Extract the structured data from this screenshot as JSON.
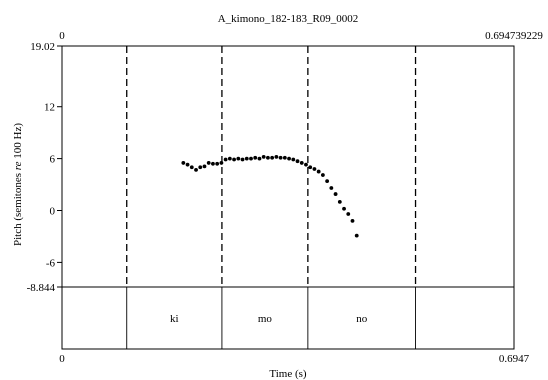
{
  "chart_data": {
    "type": "scatter",
    "title": "A_kimono_182-183_R09_0002",
    "xlabel": "Time (s)",
    "ylabel": "Pitch (semitones re 100 Hz)",
    "ylabel_parts": {
      "pre": "Pitch (semitones ",
      "italic": "re",
      "post": " 100 Hz)"
    },
    "xlim": [
      0,
      0.694739229
    ],
    "ylim": [
      -8.844,
      19.02
    ],
    "x_start_label": "0",
    "x_end_label_top": "0.694739229",
    "x_end_label_bottom": "0.6947",
    "y_ticks": [
      {
        "value": 19.02,
        "label": "19.02"
      },
      {
        "value": 12,
        "label": "12"
      },
      {
        "value": 6,
        "label": "6"
      },
      {
        "value": 0,
        "label": "0"
      },
      {
        "value": -6,
        "label": "-6"
      },
      {
        "value": -8.844,
        "label": "-8.844"
      }
    ],
    "boundaries": [
      0.0995,
      0.2458,
      0.3779,
      0.5434
    ],
    "segments": [
      {
        "label": "ki",
        "start": 0.0995,
        "end": 0.2458
      },
      {
        "label": "mo",
        "start": 0.2458,
        "end": 0.3779
      },
      {
        "label": "no",
        "start": 0.3779,
        "end": 0.5434
      }
    ],
    "points": [
      [
        0.1865,
        5.5
      ],
      [
        0.193,
        5.3
      ],
      [
        0.1995,
        5.0
      ],
      [
        0.206,
        4.7
      ],
      [
        0.2125,
        5.0
      ],
      [
        0.219,
        5.1
      ],
      [
        0.2255,
        5.5
      ],
      [
        0.232,
        5.4
      ],
      [
        0.2385,
        5.4
      ],
      [
        0.245,
        5.5
      ],
      [
        0.2515,
        5.9
      ],
      [
        0.258,
        6.0
      ],
      [
        0.2645,
        5.9
      ],
      [
        0.271,
        6.0
      ],
      [
        0.2775,
        5.9
      ],
      [
        0.284,
        6.0
      ],
      [
        0.2905,
        6.0
      ],
      [
        0.297,
        6.1
      ],
      [
        0.3035,
        6.0
      ],
      [
        0.31,
        6.2
      ],
      [
        0.3165,
        6.1
      ],
      [
        0.323,
        6.1
      ],
      [
        0.3295,
        6.2
      ],
      [
        0.336,
        6.1
      ],
      [
        0.3425,
        6.1
      ],
      [
        0.349,
        6.0
      ],
      [
        0.3555,
        5.9
      ],
      [
        0.362,
        5.7
      ],
      [
        0.3685,
        5.5
      ],
      [
        0.375,
        5.3
      ],
      [
        0.3815,
        5.0
      ],
      [
        0.388,
        4.8
      ],
      [
        0.3945,
        4.5
      ],
      [
        0.401,
        4.1
      ],
      [
        0.4075,
        3.4
      ],
      [
        0.414,
        2.6
      ],
      [
        0.4205,
        1.9
      ],
      [
        0.427,
        1.0
      ],
      [
        0.4335,
        0.2
      ],
      [
        0.44,
        -0.4
      ],
      [
        0.4465,
        -1.2
      ],
      [
        0.453,
        -2.9
      ]
    ]
  }
}
